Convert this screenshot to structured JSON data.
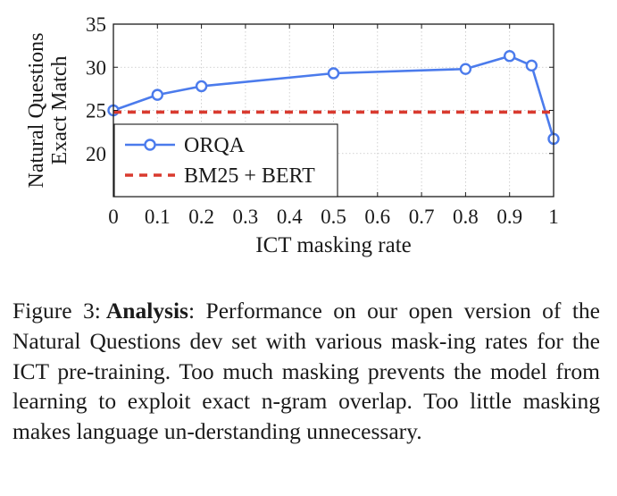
{
  "chart_data": {
    "type": "line",
    "xlabel": "ICT masking rate",
    "ylabel_lines": [
      "Natural Questions",
      "Exact Match"
    ],
    "xlim": [
      0,
      1
    ],
    "ylim": [
      15,
      35
    ],
    "xticks": [
      0,
      0.1,
      0.2,
      0.3,
      0.4,
      0.5,
      0.6,
      0.7,
      0.8,
      0.9,
      1
    ],
    "xtick_labels": [
      "0",
      "0.1",
      "0.2",
      "0.3",
      "0.4",
      "0.5",
      "0.6",
      "0.7",
      "0.8",
      "0.9",
      "1"
    ],
    "yticks": [
      20,
      25,
      30,
      35
    ],
    "ytick_labels": [
      "20",
      "25",
      "30",
      "35"
    ],
    "grid": true,
    "legend_position": "bottom-left",
    "series": [
      {
        "name": "ORQA",
        "style": "solid-line-circle-markers",
        "color": "#4b7bec",
        "x": [
          0,
          0.1,
          0.2,
          0.5,
          0.8,
          0.9,
          0.95,
          1.0
        ],
        "values": [
          25.0,
          26.8,
          27.8,
          29.3,
          29.8,
          31.3,
          30.2,
          21.7
        ]
      },
      {
        "name": "BM25 + BERT",
        "style": "dashed-line",
        "color": "#d93a2f",
        "x": [
          0,
          1
        ],
        "values": [
          24.8,
          24.8
        ]
      }
    ]
  },
  "caption": {
    "label": "Figure 3:",
    "bold": "Analysis",
    "text": ": Performance on our open version of the Natural Questions dev set with various mask-ing rates for the ICT pre-training. Too much masking prevents the model from learning to exploit exact n-gram overlap. Too little masking makes language un-derstanding unnecessary."
  }
}
